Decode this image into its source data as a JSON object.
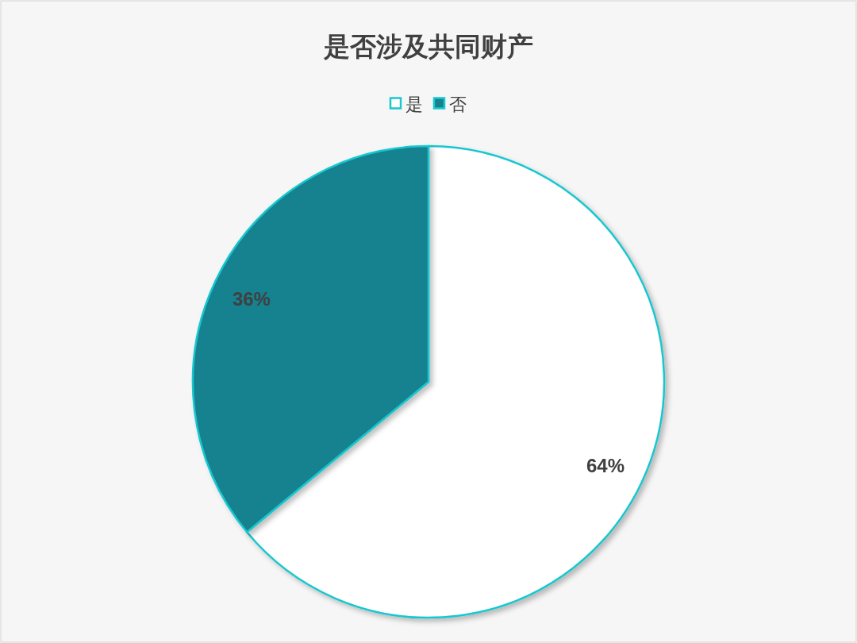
{
  "chart_data": {
    "type": "pie",
    "title": "是否涉及共同财产",
    "categories": [
      "是",
      "否"
    ],
    "values": [
      64,
      36
    ],
    "colors": [
      "#ffffff",
      "#16818f"
    ],
    "value_labels": [
      "64%",
      "36%"
    ],
    "legend": "top"
  }
}
